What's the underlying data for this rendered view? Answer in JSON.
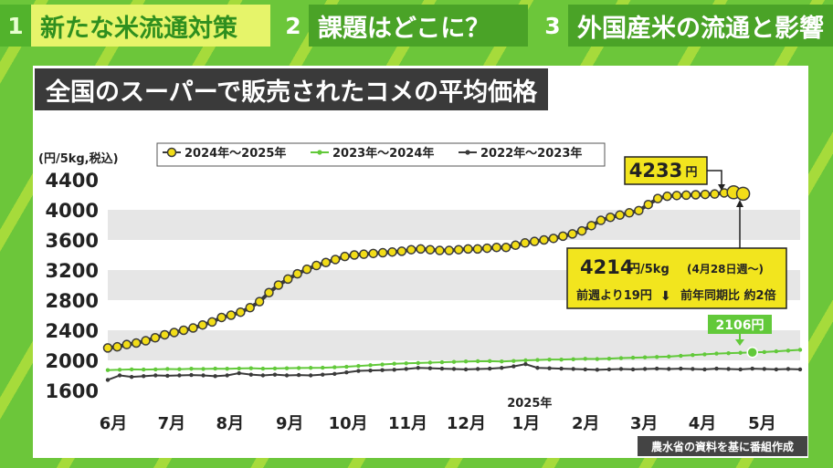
{
  "header": {
    "tabs": [
      {
        "num": "1",
        "label": "新たな米流通対策",
        "active": true
      },
      {
        "num": "2",
        "label": "課題はどこに？",
        "active": false
      },
      {
        "num": "3",
        "label": "外国産米の流通と影響",
        "active": false
      }
    ]
  },
  "title": "全国のスーパーで販売されたコメの平均価格",
  "source": "農水省の資料を基に番組作成",
  "chart_data": {
    "type": "line",
    "unit_label": "(円/5kg,税込)",
    "ylim": [
      1600,
      4400
    ],
    "yticks": [
      "4400",
      "4000",
      "3600",
      "3200",
      "2800",
      "2400",
      "2000",
      "1600"
    ],
    "xlim": [
      0,
      51
    ],
    "month_ticks": [
      {
        "label": "6月",
        "x": 0
      },
      {
        "label": "7月",
        "x": 4.3
      },
      {
        "label": "8月",
        "x": 8.6
      },
      {
        "label": "9月",
        "x": 13
      },
      {
        "label": "10月",
        "x": 17.3
      },
      {
        "label": "11月",
        "x": 21.7
      },
      {
        "label": "12月",
        "x": 26
      },
      {
        "label": "1月",
        "x": 30.4
      },
      {
        "label": "2月",
        "x": 34.8
      },
      {
        "label": "3月",
        "x": 39.1
      },
      {
        "label": "4月",
        "x": 43.4
      },
      {
        "label": "5月",
        "x": 47.8
      }
    ],
    "year_label": {
      "text": "2025年",
      "x": 30.4
    },
    "series": [
      {
        "name": "2024年～2025年",
        "color": "#f2dd18",
        "stroke": "#3a3a3a",
        "marker": "circle-large",
        "values": [
          2165,
          2180,
          2210,
          2230,
          2260,
          2300,
          2340,
          2370,
          2400,
          2430,
          2470,
          2510,
          2570,
          2600,
          2640,
          2700,
          2780,
          2900,
          3000,
          3080,
          3150,
          3210,
          3260,
          3300,
          3340,
          3380,
          3400,
          3410,
          3420,
          3430,
          3440,
          3450,
          3470,
          3480,
          3470,
          3460,
          3460,
          3470,
          3480,
          3480,
          3490,
          3500,
          3500,
          3530,
          3560,
          3580,
          3600,
          3620,
          3650,
          3680,
          3720,
          3790,
          3860,
          3900,
          3930,
          3960,
          3990,
          4070,
          4150,
          4180,
          4190,
          4195,
          4200,
          4205,
          4210,
          4225,
          4233,
          4214
        ],
        "x_end": 46.8
      },
      {
        "name": "2023年～2024年",
        "color": "#62c93a",
        "marker": "dot",
        "values": [
          1870,
          1875,
          1880,
          1878,
          1880,
          1885,
          1882,
          1888,
          1886,
          1890,
          1888,
          1892,
          1895,
          1890,
          1892,
          1895,
          1898,
          1900,
          1902,
          1908,
          1915,
          1925,
          1935,
          1945,
          1955,
          1960,
          1965,
          1970,
          1975,
          1980,
          1985,
          1988,
          1990,
          1985,
          1992,
          2000,
          2005,
          2010,
          2010,
          2015,
          2020,
          2018,
          2022,
          2030,
          2035,
          2040,
          2045,
          2050,
          2060,
          2070,
          2080,
          2090,
          2095,
          2100,
          2106,
          2110,
          2120,
          2130,
          2140
        ],
        "x_end": 51
      },
      {
        "name": "2022年～2023年",
        "color": "#3a3a3a",
        "marker": "dot",
        "values": [
          1740,
          1800,
          1780,
          1790,
          1800,
          1795,
          1800,
          1805,
          1800,
          1790,
          1800,
          1830,
          1810,
          1800,
          1810,
          1800,
          1805,
          1800,
          1810,
          1820,
          1840,
          1860,
          1865,
          1870,
          1875,
          1885,
          1900,
          1895,
          1890,
          1885,
          1880,
          1885,
          1890,
          1900,
          1920,
          1950,
          1900,
          1895,
          1890,
          1885,
          1880,
          1875,
          1880,
          1885,
          1880,
          1885,
          1890,
          1885,
          1890,
          1885,
          1880,
          1890,
          1885,
          1880,
          1890,
          1885,
          1880,
          1885,
          1880
        ],
        "x_end": 51
      }
    ],
    "annotations": [
      {
        "text": "4233",
        "unit": "円"
      },
      {
        "main": "4214",
        "main_unit": "円/5kg",
        "sub": "(4月28日週～)",
        "line2_left": "前週より19円",
        "line2_arrow": "⬇",
        "line2_right": "前年同期比 約2倍"
      },
      {
        "text": "2106円"
      }
    ]
  }
}
